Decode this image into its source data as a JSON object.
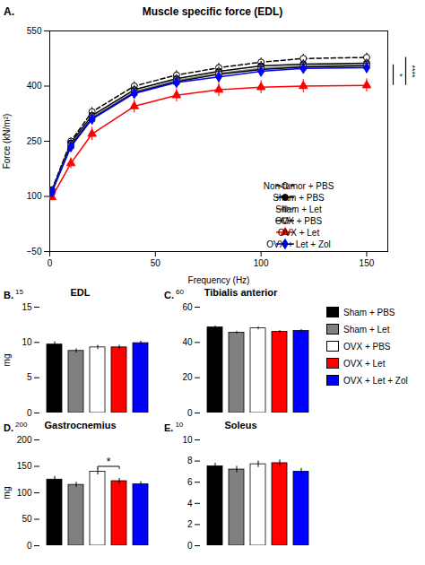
{
  "chart_data": [
    {
      "type": "line",
      "title": "Muscle specific force (EDL)",
      "x_label": "Frequency (Hz)",
      "y_label": "Force (kN/m²)",
      "x": [
        1,
        10,
        20,
        40,
        60,
        80,
        100,
        120,
        150
      ],
      "series": [
        {
          "name": "Non-tumor + PBS",
          "color": "black",
          "marker": "open_circle",
          "line_style": "dashed",
          "values": [
            118,
            250,
            330,
            400,
            430,
            450,
            465,
            475,
            478
          ],
          "errors": [
            5,
            10,
            12,
            12,
            12,
            12,
            12,
            12,
            12
          ]
        },
        {
          "name": "Sham + PBS",
          "color": "black",
          "marker": "circle",
          "line_style": "solid",
          "values": [
            115,
            245,
            320,
            390,
            420,
            440,
            455,
            460,
            462
          ],
          "errors": [
            5,
            10,
            12,
            12,
            12,
            12,
            12,
            12,
            12
          ]
        },
        {
          "name": "Sham + Let",
          "color": "gray",
          "marker": "circle",
          "line_style": "solid",
          "values": [
            113,
            240,
            315,
            385,
            415,
            435,
            448,
            455,
            458
          ],
          "errors": [
            5,
            10,
            12,
            12,
            12,
            12,
            12,
            12,
            12
          ]
        },
        {
          "name": "OVX + PBS",
          "color": "black",
          "marker": "open_square",
          "line_style": "solid",
          "values": [
            112,
            238,
            312,
            382,
            412,
            432,
            445,
            452,
            455
          ],
          "errors": [
            5,
            10,
            12,
            12,
            12,
            12,
            12,
            12,
            12
          ]
        },
        {
          "name": "OVX + Let",
          "color": "red",
          "marker": "triangle",
          "line_style": "solid",
          "values": [
            98,
            190,
            270,
            345,
            375,
            390,
            397,
            400,
            402
          ],
          "errors": [
            8,
            15,
            18,
            18,
            18,
            18,
            18,
            18,
            18
          ]
        },
        {
          "name": "OVX + Let + Zol",
          "color": "blue",
          "marker": "diamond",
          "line_style": "solid",
          "values": [
            112,
            235,
            310,
            380,
            410,
            425,
            440,
            448,
            450
          ],
          "errors": [
            5,
            10,
            12,
            12,
            12,
            12,
            12,
            12,
            12
          ]
        }
      ],
      "xlim": [
        0,
        160
      ],
      "xticks": [
        0,
        50,
        100,
        150
      ],
      "ylim": [
        -50,
        550
      ],
      "yticks": [
        -50,
        100,
        250,
        400,
        550
      ],
      "grid": false,
      "legend": "lower right",
      "annotations": [
        {
          "text": "A."
        },
        {
          "text": "*",
          "y": [
            402,
            458
          ]
        },
        {
          "text": "****",
          "y": [
            402,
            478
          ]
        }
      ]
    },
    {
      "type": "bar",
      "title": "EDL",
      "y_label": "mg",
      "categories": [
        "Sham + PBS",
        "Sham + Let",
        "OVX + PBS",
        "OVX + Let",
        "OVX + Let + Zol"
      ],
      "colors": [
        "#000000",
        "#808080",
        "#ffffff",
        "#ff0000",
        "#0000ff"
      ],
      "values": [
        9.7,
        8.8,
        9.3,
        9.3,
        9.9
      ],
      "errors": [
        0.4,
        0.3,
        0.3,
        0.3,
        0.3
      ],
      "ylim": [
        0,
        15
      ],
      "yticks": [
        0,
        5,
        10,
        15
      ],
      "grid": false,
      "tick_labels": "y",
      "legend": "right",
      "annotations": [
        {
          "text": "B."
        },
        {
          "text": "15"
        }
      ]
    },
    {
      "type": "bar",
      "title": "Tibialis anterior",
      "categories": [
        "Sham + PBS",
        "Sham + Let",
        "OVX + PBS",
        "OVX + Let",
        "OVX + Let + Zol"
      ],
      "colors": [
        "#000000",
        "#808080",
        "#ffffff",
        "#ff0000",
        "#0000ff"
      ],
      "values": [
        48.5,
        45.5,
        48.0,
        46.0,
        46.5
      ],
      "errors": [
        0.8,
        0.8,
        0.8,
        0.8,
        0.8
      ],
      "ylim": [
        0,
        60
      ],
      "yticks": [
        0,
        20,
        40,
        60
      ],
      "grid": false,
      "tick_labels": "y",
      "annotations": [
        {
          "text": "C."
        },
        {
          "text": "60"
        }
      ]
    },
    {
      "type": "bar",
      "title": "Gastrocnemius",
      "y_label": "mg",
      "categories": [
        "Sham + PBS",
        "Sham + Let",
        "OVX + PBS",
        "OVX + Let",
        "OVX + Let + Zol"
      ],
      "colors": [
        "#000000",
        "#808080",
        "#ffffff",
        "#ff0000",
        "#0000ff"
      ],
      "values": [
        125,
        115,
        140,
        122,
        116
      ],
      "errors": [
        6,
        5,
        6,
        5,
        5
      ],
      "ylim": [
        0,
        200
      ],
      "yticks": [
        0,
        50,
        100,
        150,
        200
      ],
      "grid": false,
      "tick_labels": "y",
      "annotations": [
        {
          "text": "D."
        },
        {
          "text": "200"
        },
        {
          "text": "*",
          "x": [
            "OVX + PBS",
            "OVX + Let"
          ],
          "y": [
            146,
            150
          ]
        }
      ]
    },
    {
      "type": "bar",
      "title": "Soleus",
      "categories": [
        "Sham + PBS",
        "Sham + Let",
        "OVX + PBS",
        "OVX + Let",
        "OVX + Let + Zol"
      ],
      "colors": [
        "#000000",
        "#808080",
        "#ffffff",
        "#ff0000",
        "#0000ff"
      ],
      "values": [
        7.5,
        7.2,
        7.7,
        7.8,
        7.0
      ],
      "errors": [
        0.3,
        0.3,
        0.3,
        0.3,
        0.3
      ],
      "ylim": [
        0,
        10
      ],
      "yticks": [
        0,
        2,
        4,
        6,
        8,
        10
      ],
      "grid": false,
      "tick_labels": "y",
      "annotations": [
        {
          "text": "E."
        },
        {
          "text": "10"
        }
      ]
    }
  ]
}
